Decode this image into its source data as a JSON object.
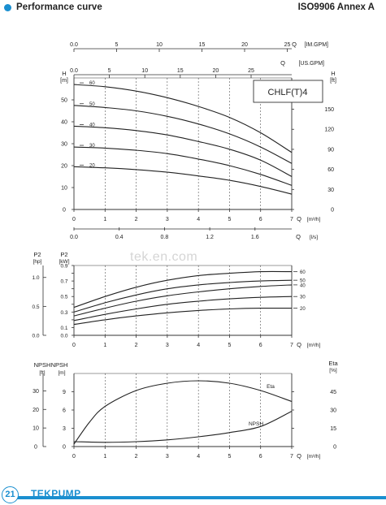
{
  "header": {
    "title": "Performance curve",
    "standard": "ISO9906 Annex A"
  },
  "watermark": "tek.en.com",
  "footer": {
    "page": "21",
    "brand": "TEKPUMP"
  },
  "chart_data": [
    {
      "type": "line",
      "model_label": "CHLF(T)4",
      "xlabel": "Q",
      "x_unit": "[m³/h]",
      "xlim": [
        0,
        7
      ],
      "x_ticks": [
        "0",
        "1",
        "2",
        "3",
        "4",
        "5",
        "6",
        "7"
      ],
      "top_axes": [
        {
          "unit": "[IM.GPM]",
          "ticks": [
            "0.0",
            "5",
            "10",
            "15",
            "20",
            "25"
          ]
        },
        {
          "unit": "[US.GPM]",
          "ticks": [
            "0.0",
            "5",
            "10",
            "15",
            "20",
            "25"
          ]
        }
      ],
      "bottom_axis_2": {
        "unit": "[l/s]",
        "ticks": [
          "0.0",
          "0.4",
          "0.8",
          "1.2",
          "1.6"
        ]
      },
      "ylabel_left": "H",
      "y_unit_left": "[m]",
      "ylim": [
        0,
        60
      ],
      "y_ticks_left": [
        "0",
        "10",
        "20",
        "30",
        "40",
        "50"
      ],
      "ylabel_right": "H",
      "y_unit_right": "[ft]",
      "y_ticks_right": [
        "0",
        "30",
        "60",
        "90",
        "120",
        "150"
      ],
      "series": [
        {
          "name": "60",
          "x": [
            0,
            1,
            2,
            3,
            4,
            5,
            6,
            7
          ],
          "y": [
            57,
            56,
            54,
            51,
            47,
            42,
            35,
            26
          ]
        },
        {
          "name": "50",
          "x": [
            0,
            1,
            2,
            3,
            4,
            5,
            6,
            7
          ],
          "y": [
            47.5,
            46.5,
            45,
            42.5,
            39,
            34.5,
            28.5,
            21
          ]
        },
        {
          "name": "40",
          "x": [
            0,
            1,
            2,
            3,
            4,
            5,
            6,
            7
          ],
          "y": [
            38,
            37.3,
            36,
            34,
            31,
            27.5,
            22.5,
            15
          ]
        },
        {
          "name": "30",
          "x": [
            0,
            1,
            2,
            3,
            4,
            5,
            6,
            7
          ],
          "y": [
            28.5,
            28,
            27,
            25.5,
            23,
            20,
            16,
            11
          ]
        },
        {
          "name": "20",
          "x": [
            0,
            1,
            2,
            3,
            4,
            5,
            6,
            7
          ],
          "y": [
            19.5,
            19,
            18.2,
            17,
            15.3,
            13.3,
            10.5,
            7
          ]
        }
      ]
    },
    {
      "type": "line",
      "xlabel": "Q",
      "x_unit": "[m³/h]",
      "xlim": [
        0,
        7
      ],
      "x_ticks": [
        "0",
        "1",
        "2",
        "3",
        "4",
        "5",
        "6",
        "7"
      ],
      "ylabel_left": "P2",
      "y_unit_left": "[kW]",
      "ylim": [
        0,
        0.9
      ],
      "y_ticks_left": [
        "0.0",
        "0.1",
        "0.2",
        "0.3",
        "0.4",
        "0.5",
        "0.6",
        "0.7",
        "0.8",
        "0.9"
      ],
      "ylabel_far_left": "P2",
      "y_unit_far_left": "[hp]",
      "y_ticks_far_left": [
        "0.0",
        "0.5",
        "1.0"
      ],
      "series": [
        {
          "name": "60",
          "x": [
            0,
            1,
            2,
            3,
            4,
            5,
            6,
            7
          ],
          "y": [
            0.36,
            0.5,
            0.62,
            0.71,
            0.77,
            0.8,
            0.82,
            0.82
          ]
        },
        {
          "name": "50",
          "x": [
            0,
            1,
            2,
            3,
            4,
            5,
            6,
            7
          ],
          "y": [
            0.3,
            0.42,
            0.52,
            0.6,
            0.65,
            0.68,
            0.7,
            0.71
          ]
        },
        {
          "name": "40",
          "x": [
            0,
            1,
            2,
            3,
            4,
            5,
            6,
            7
          ],
          "y": [
            0.25,
            0.35,
            0.44,
            0.51,
            0.56,
            0.6,
            0.63,
            0.65
          ]
        },
        {
          "name": "30",
          "x": [
            0,
            1,
            2,
            3,
            4,
            5,
            6,
            7
          ],
          "y": [
            0.19,
            0.27,
            0.34,
            0.4,
            0.44,
            0.47,
            0.49,
            0.5
          ]
        },
        {
          "name": "20",
          "x": [
            0,
            1,
            2,
            3,
            4,
            5,
            6,
            7
          ],
          "y": [
            0.14,
            0.2,
            0.25,
            0.29,
            0.32,
            0.34,
            0.35,
            0.35
          ]
        }
      ]
    },
    {
      "type": "line",
      "xlabel": "Q",
      "x_unit": "[m³/h]",
      "xlim": [
        0,
        7
      ],
      "x_ticks": [
        "0",
        "1",
        "2",
        "3",
        "4",
        "5",
        "6",
        "7"
      ],
      "ylabel_left": "NPSH",
      "y_unit_left": "[m]",
      "ylim": [
        0,
        12
      ],
      "y_ticks_left": [
        "0",
        "3",
        "6",
        "9"
      ],
      "ylabel_far_left": "NPSH",
      "y_unit_far_left": "[ft]",
      "y_ticks_far_left": [
        "0",
        "10",
        "20",
        "30"
      ],
      "ylabel_right": "Eta",
      "y_unit_right": "[%]",
      "y_ticks_right": [
        "0",
        "15",
        "30",
        "45"
      ],
      "series": [
        {
          "name": "Eta",
          "axis": "right",
          "x": [
            0,
            0.5,
            1,
            2,
            3,
            4,
            5,
            6,
            7
          ],
          "y": [
            2,
            20,
            33,
            46,
            52,
            54,
            52,
            46,
            37
          ]
        },
        {
          "name": "NPSH",
          "axis": "left",
          "x": [
            0,
            1,
            2,
            3,
            4,
            5,
            6,
            7
          ],
          "y": [
            0.8,
            0.7,
            0.8,
            1.1,
            1.6,
            2.3,
            3.3,
            5.8
          ]
        }
      ]
    }
  ]
}
